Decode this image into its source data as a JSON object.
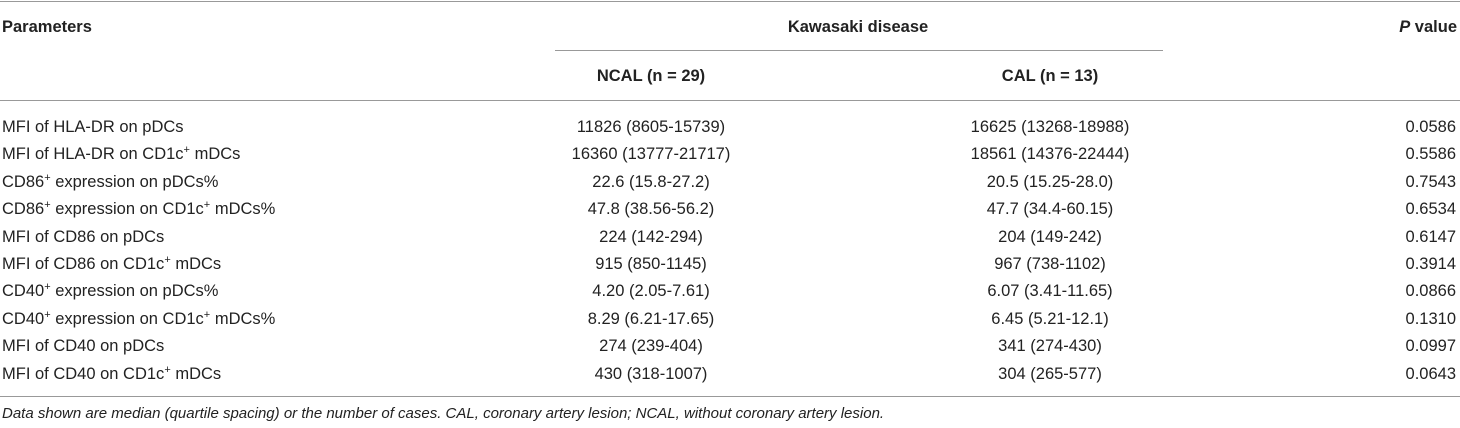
{
  "table": {
    "header": {
      "parameters": "Parameters",
      "group": "Kawasaki disease",
      "p_value": [
        {
          "italic": "P"
        },
        {
          "text": " value"
        }
      ],
      "columns": [
        "NCAL (n = 29)",
        "CAL (n = 13)"
      ]
    },
    "rows": [
      {
        "parameter": [
          {
            "text": "MFI of HLA-DR on pDCs"
          }
        ],
        "ncal": "11826 (8605-15739)",
        "cal": "16625 (13268-18988)",
        "p": "0.0586"
      },
      {
        "parameter": [
          {
            "text": "MFI of HLA-DR on CD1c"
          },
          {
            "sup": "+"
          },
          {
            "text": " mDCs"
          }
        ],
        "ncal": "16360 (13777-21717)",
        "cal": "18561 (14376-22444)",
        "p": "0.5586"
      },
      {
        "parameter": [
          {
            "text": "CD86"
          },
          {
            "sup": "+"
          },
          {
            "text": " expression on pDCs%"
          }
        ],
        "ncal": "22.6 (15.8-27.2)",
        "cal": "20.5 (15.25-28.0)",
        "p": "0.7543"
      },
      {
        "parameter": [
          {
            "text": "CD86"
          },
          {
            "sup": "+"
          },
          {
            "text": " expression on CD1c"
          },
          {
            "sup": "+"
          },
          {
            "text": " mDCs%"
          }
        ],
        "ncal": "47.8 (38.56-56.2)",
        "cal": "47.7 (34.4-60.15)",
        "p": "0.6534"
      },
      {
        "parameter": [
          {
            "text": "MFI of CD86 on pDCs"
          }
        ],
        "ncal": "224 (142-294)",
        "cal": "204 (149-242)",
        "p": "0.6147"
      },
      {
        "parameter": [
          {
            "text": "MFI of CD86 on CD1c"
          },
          {
            "sup": "+"
          },
          {
            "text": " mDCs"
          }
        ],
        "ncal": "915 (850-1145)",
        "cal": "967 (738-1102)",
        "p": "0.3914"
      },
      {
        "parameter": [
          {
            "text": "CD40"
          },
          {
            "sup": "+"
          },
          {
            "text": " expression on pDCs%"
          }
        ],
        "ncal": "4.20 (2.05-7.61)",
        "cal": "6.07 (3.41-11.65)",
        "p": "0.0866"
      },
      {
        "parameter": [
          {
            "text": "CD40"
          },
          {
            "sup": "+"
          },
          {
            "text": " expression on CD1c"
          },
          {
            "sup": "+"
          },
          {
            "text": " mDCs%"
          }
        ],
        "ncal": "8.29 (6.21-17.65)",
        "cal": "6.45 (5.21-12.1)",
        "p": "0.1310"
      },
      {
        "parameter": [
          {
            "text": "MFI of CD40 on pDCs"
          }
        ],
        "ncal": "274 (239-404)",
        "cal": "341 (274-430)",
        "p": "0.0997"
      },
      {
        "parameter": [
          {
            "text": "MFI of CD40 on CD1c"
          },
          {
            "sup": "+"
          },
          {
            "text": " mDCs"
          }
        ],
        "ncal": "430 (318-1007)",
        "cal": "304 (265-577)",
        "p": "0.0643"
      }
    ],
    "footnote": "Data shown are median (quartile spacing) or the number of cases. CAL, coronary artery lesion; NCAL, without coronary artery lesion."
  }
}
